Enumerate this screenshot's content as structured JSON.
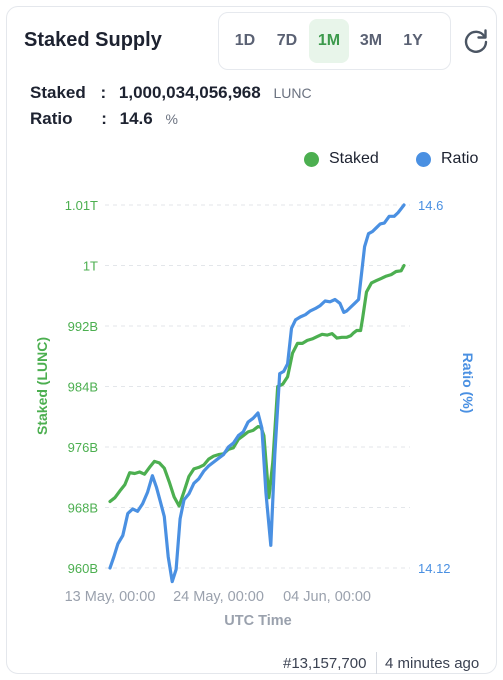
{
  "header": {
    "title": "Staked Supply",
    "periods": [
      "1D",
      "7D",
      "1M",
      "3M",
      "1Y"
    ],
    "active_period": "1M",
    "refresh_icon": "refresh-icon"
  },
  "stats": {
    "staked_label": "Staked",
    "staked_value": "1,000,034,056,968",
    "staked_unit": "LUNC",
    "ratio_label": "Ratio",
    "ratio_value": "14.6",
    "ratio_unit": "%"
  },
  "footer": {
    "block": "#13,157,700",
    "updated": "4 minutes ago"
  },
  "chart_data": {
    "type": "line",
    "xlabel": "UTC Time",
    "ylabel_left": "Staked (LUNC)",
    "ylabel_right": "Ratio (%)",
    "legend_position": "top-right",
    "x_tick_labels": [
      "13 May, 00:00",
      "24 May, 00:00",
      "04 Jun, 00:00"
    ],
    "y_left_tick_labels": [
      "960B",
      "968B",
      "976B",
      "984B",
      "992B",
      "1T",
      "1.01T"
    ],
    "y_left_ticks_billion": [
      960,
      968,
      976,
      984,
      992,
      1000,
      1008
    ],
    "y_left_range_billion": [
      960,
      1008
    ],
    "y_right_tick_labels": [
      "14.12",
      "14.6"
    ],
    "y_right_range": [
      14.12,
      14.6
    ],
    "grid": "horizontal dashed",
    "x_day_range": [
      "13 May",
      "09 Jun"
    ],
    "x_day_ticks": [
      [
        "13 May, 00:00",
        0
      ],
      [
        "24 May, 00:00",
        11
      ],
      [
        "04 Jun, 00:00",
        22
      ]
    ],
    "series": [
      {
        "name": "Staked",
        "color": "#4caf50",
        "axis": "left",
        "unit": "billion LUNC",
        "points": [
          [
            0.0,
            968.8
          ],
          [
            0.5,
            969.3
          ],
          [
            1.0,
            970.2
          ],
          [
            1.5,
            971.0
          ],
          [
            2.0,
            972.6
          ],
          [
            2.5,
            972.5
          ],
          [
            3.0,
            972.7
          ],
          [
            3.5,
            972.4
          ],
          [
            4.0,
            973.3
          ],
          [
            4.5,
            974.1
          ],
          [
            5.0,
            973.9
          ],
          [
            5.5,
            973.2
          ],
          [
            6.0,
            971.4
          ],
          [
            6.5,
            969.4
          ],
          [
            7.0,
            968.2
          ],
          [
            7.5,
            970.1
          ],
          [
            8.0,
            972.1
          ],
          [
            8.5,
            973.1
          ],
          [
            9.0,
            973.3
          ],
          [
            9.5,
            973.6
          ],
          [
            10.0,
            974.4
          ],
          [
            10.5,
            974.8
          ],
          [
            11.0,
            975.0
          ],
          [
            11.5,
            975.1
          ],
          [
            12.0,
            975.7
          ],
          [
            12.5,
            975.9
          ],
          [
            13.0,
            977.0
          ],
          [
            13.5,
            977.5
          ],
          [
            14.0,
            978.0
          ],
          [
            14.5,
            978.2
          ],
          [
            15.0,
            978.7
          ],
          [
            15.3,
            978.6
          ],
          [
            15.6,
            977.5
          ],
          [
            16.1,
            969.3
          ],
          [
            16.5,
            974.0
          ],
          [
            17.0,
            984.0
          ],
          [
            17.5,
            984.3
          ],
          [
            18.0,
            985.3
          ],
          [
            18.5,
            988.4
          ],
          [
            19.0,
            989.7
          ],
          [
            19.5,
            989.7
          ],
          [
            20.0,
            990.1
          ],
          [
            20.5,
            990.3
          ],
          [
            21.0,
            990.6
          ],
          [
            21.5,
            990.9
          ],
          [
            22.0,
            990.8
          ],
          [
            22.5,
            991.0
          ],
          [
            23.0,
            990.4
          ],
          [
            23.5,
            990.5
          ],
          [
            24.0,
            990.5
          ],
          [
            24.4,
            990.7
          ],
          [
            24.7,
            991.1
          ],
          [
            25.0,
            991.4
          ],
          [
            25.4,
            991.4
          ],
          [
            25.6,
            993.0
          ],
          [
            26.0,
            996.5
          ],
          [
            26.5,
            997.7
          ],
          [
            27.0,
            998.0
          ],
          [
            27.5,
            998.3
          ],
          [
            28.0,
            998.6
          ],
          [
            28.5,
            998.8
          ],
          [
            29.0,
            999.2
          ],
          [
            29.5,
            999.3
          ],
          [
            29.8,
            1000.0
          ]
        ]
      },
      {
        "name": "Ratio",
        "color": "#4a90e2",
        "axis": "right",
        "unit": "%",
        "points": [
          [
            0.0,
            14.12
          ],
          [
            0.4,
            14.135
          ],
          [
            0.8,
            14.152
          ],
          [
            1.3,
            14.163
          ],
          [
            1.8,
            14.192
          ],
          [
            2.3,
            14.198
          ],
          [
            2.8,
            14.195
          ],
          [
            3.3,
            14.205
          ],
          [
            3.8,
            14.22
          ],
          [
            4.3,
            14.242
          ],
          [
            4.7,
            14.227
          ],
          [
            5.1,
            14.208
          ],
          [
            5.5,
            14.188
          ],
          [
            5.9,
            14.135
          ],
          [
            6.3,
            14.102
          ],
          [
            6.7,
            14.118
          ],
          [
            7.1,
            14.185
          ],
          [
            7.5,
            14.21
          ],
          [
            8.0,
            14.218
          ],
          [
            8.5,
            14.232
          ],
          [
            9.0,
            14.238
          ],
          [
            9.5,
            14.248
          ],
          [
            10.0,
            14.255
          ],
          [
            10.5,
            14.26
          ],
          [
            11.0,
            14.265
          ],
          [
            11.5,
            14.27
          ],
          [
            12.0,
            14.28
          ],
          [
            12.5,
            14.285
          ],
          [
            13.0,
            14.295
          ],
          [
            13.5,
            14.3
          ],
          [
            14.0,
            14.313
          ],
          [
            14.5,
            14.318
          ],
          [
            15.0,
            14.325
          ],
          [
            15.4,
            14.305
          ],
          [
            15.8,
            14.22
          ],
          [
            16.3,
            14.15
          ],
          [
            16.7,
            14.27
          ],
          [
            17.2,
            14.377
          ],
          [
            17.6,
            14.38
          ],
          [
            18.0,
            14.39
          ],
          [
            18.4,
            14.437
          ],
          [
            18.8,
            14.448
          ],
          [
            19.3,
            14.452
          ],
          [
            19.8,
            14.455
          ],
          [
            20.3,
            14.46
          ],
          [
            20.8,
            14.463
          ],
          [
            21.3,
            14.467
          ],
          [
            21.8,
            14.473
          ],
          [
            22.3,
            14.472
          ],
          [
            22.8,
            14.475
          ],
          [
            23.3,
            14.47
          ],
          [
            23.7,
            14.458
          ],
          [
            24.0,
            14.46
          ],
          [
            24.4,
            14.465
          ],
          [
            24.8,
            14.47
          ],
          [
            25.2,
            14.475
          ],
          [
            25.5,
            14.51
          ],
          [
            25.8,
            14.545
          ],
          [
            26.2,
            14.562
          ],
          [
            26.6,
            14.565
          ],
          [
            27.0,
            14.57
          ],
          [
            27.4,
            14.575
          ],
          [
            27.8,
            14.576
          ],
          [
            28.3,
            14.585
          ],
          [
            28.8,
            14.585
          ],
          [
            29.2,
            14.59
          ],
          [
            29.8,
            14.6
          ]
        ]
      }
    ]
  }
}
